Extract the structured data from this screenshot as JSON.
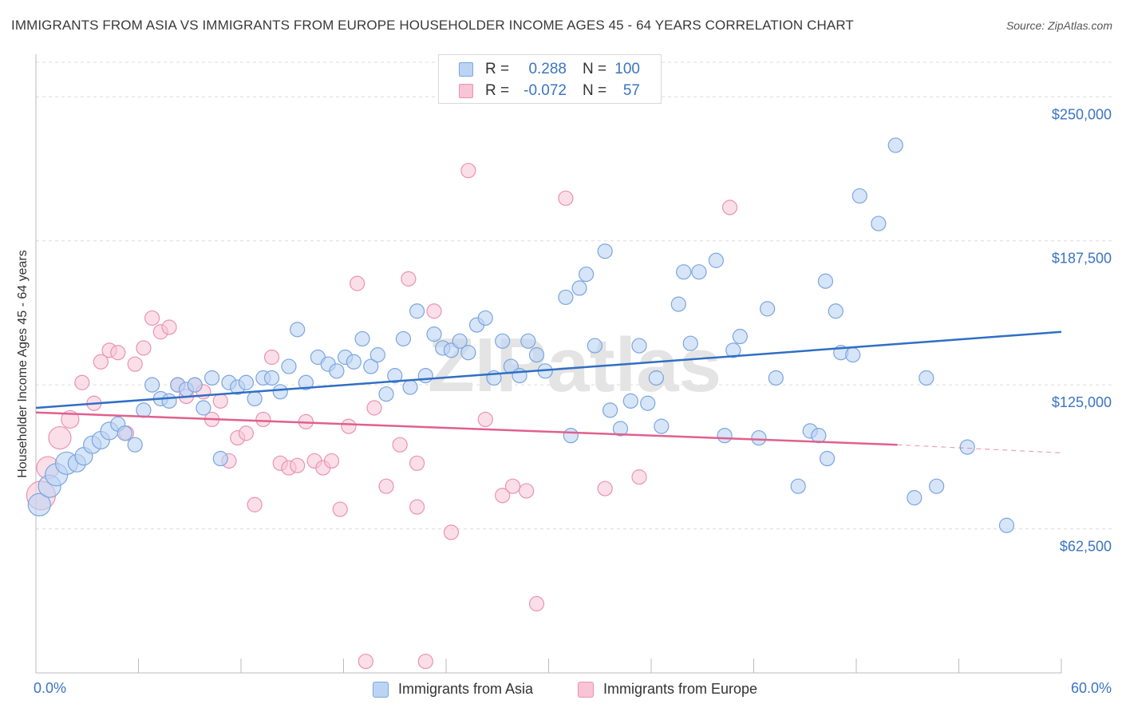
{
  "header": {
    "title": "IMMIGRANTS FROM ASIA VS IMMIGRANTS FROM EUROPE HOUSEHOLDER INCOME AGES 45 - 64 YEARS CORRELATION CHART",
    "source": "Source: ZipAtlas.com"
  },
  "watermark": "ZIPatlas",
  "legend": {
    "rows": [
      {
        "r_label": "R =",
        "r_value": "0.288",
        "n_label": "N =",
        "n_value": "100"
      },
      {
        "r_label": "R =",
        "r_value": "-0.072",
        "n_label": "N =",
        "n_value": "57"
      }
    ],
    "bottom": [
      "Immigrants from Asia",
      "Immigrants from Europe"
    ]
  },
  "colors": {
    "asia_fill": "#bcd4f4",
    "asia_stroke": "#7aa6e0",
    "asia_line": "#2f6fc4",
    "europe_fill": "#f8c4d6",
    "europe_stroke": "#eb92b2",
    "europe_line": "#e0608e",
    "grid": "#dcdcdc",
    "tick_label": "#3b74c4"
  },
  "chart_data": {
    "type": "scatter",
    "title": "IMMIGRANTS FROM ASIA VS IMMIGRANTS FROM EUROPE HOUSEHOLDER INCOME AGES 45 - 64 YEARS CORRELATION CHART",
    "xlabel": "",
    "ylabel": "Householder Income Ages 45 - 64 years",
    "xlim": [
      0,
      60
    ],
    "ylim": [
      0,
      265000
    ],
    "x_tick_labels": [
      "0.0%",
      "60.0%"
    ],
    "y_ticks": [
      62500,
      125000,
      187500,
      250000
    ],
    "y_tick_labels": [
      "$62,500",
      "$125,000",
      "$187,500",
      "$250,000"
    ],
    "grid": true,
    "legend_position": "top-center",
    "series": [
      {
        "name": "Immigrants from Asia",
        "r": 0.288,
        "n": 100,
        "trend": {
          "x": [
            0,
            60
          ],
          "y": [
            115000,
            148000
          ]
        },
        "points": [
          [
            0.2,
            73000,
            3
          ],
          [
            0.8,
            81000,
            3
          ],
          [
            1.2,
            86000,
            3
          ],
          [
            1.8,
            91000,
            3
          ],
          [
            2.4,
            91000,
            2
          ],
          [
            2.8,
            94000,
            2
          ],
          [
            3.3,
            99000,
            2
          ],
          [
            3.8,
            101000,
            2
          ],
          [
            4.3,
            105000,
            2
          ],
          [
            4.8,
            108000,
            1
          ],
          [
            5.2,
            104000,
            1
          ],
          [
            5.8,
            99000,
            1
          ],
          [
            6.3,
            114000,
            1
          ],
          [
            6.8,
            125000,
            1
          ],
          [
            7.3,
            119000,
            1
          ],
          [
            7.8,
            118000,
            1
          ],
          [
            8.3,
            125000,
            1
          ],
          [
            8.8,
            123000,
            1
          ],
          [
            9.3,
            125000,
            1
          ],
          [
            9.8,
            115000,
            1
          ],
          [
            10.3,
            128000,
            1
          ],
          [
            10.8,
            93000,
            1
          ],
          [
            11.3,
            126000,
            1
          ],
          [
            11.8,
            124000,
            1
          ],
          [
            12.3,
            126000,
            1
          ],
          [
            12.8,
            119000,
            1
          ],
          [
            13.3,
            128000,
            1
          ],
          [
            13.8,
            128000,
            1
          ],
          [
            14.3,
            122000,
            1
          ],
          [
            14.8,
            133000,
            1
          ],
          [
            15.3,
            149000,
            1
          ],
          [
            15.8,
            126000,
            1
          ],
          [
            16.5,
            137000,
            1
          ],
          [
            17.1,
            134000,
            1
          ],
          [
            17.6,
            131000,
            1
          ],
          [
            18.1,
            137000,
            1
          ],
          [
            18.6,
            135000,
            1
          ],
          [
            19.1,
            145000,
            1
          ],
          [
            19.6,
            133000,
            1
          ],
          [
            20.0,
            138000,
            1
          ],
          [
            20.5,
            121000,
            1
          ],
          [
            21.0,
            129000,
            1
          ],
          [
            21.5,
            145000,
            1
          ],
          [
            21.9,
            124000,
            1
          ],
          [
            22.3,
            157000,
            1
          ],
          [
            22.8,
            129000,
            1
          ],
          [
            23.3,
            147000,
            1
          ],
          [
            23.8,
            141000,
            1
          ],
          [
            24.3,
            140000,
            1
          ],
          [
            24.8,
            144000,
            1
          ],
          [
            25.3,
            139000,
            1
          ],
          [
            25.8,
            151000,
            1
          ],
          [
            26.3,
            154000,
            1
          ],
          [
            26.8,
            128000,
            1
          ],
          [
            27.3,
            144000,
            1
          ],
          [
            27.8,
            133000,
            1
          ],
          [
            28.3,
            129000,
            1
          ],
          [
            28.8,
            144000,
            1
          ],
          [
            29.3,
            138000,
            1
          ],
          [
            29.8,
            131000,
            1
          ],
          [
            31.0,
            163000,
            1
          ],
          [
            31.3,
            103000,
            1
          ],
          [
            31.8,
            167000,
            1
          ],
          [
            32.2,
            173000,
            1
          ],
          [
            32.7,
            142000,
            1
          ],
          [
            33.3,
            183000,
            1
          ],
          [
            33.6,
            114000,
            1
          ],
          [
            34.2,
            106000,
            1
          ],
          [
            34.8,
            118000,
            1
          ],
          [
            35.3,
            142000,
            1
          ],
          [
            35.8,
            117000,
            1
          ],
          [
            36.3,
            128000,
            1
          ],
          [
            36.6,
            107000,
            1
          ],
          [
            37.6,
            160000,
            1
          ],
          [
            37.9,
            174000,
            1
          ],
          [
            38.3,
            143000,
            1
          ],
          [
            38.8,
            174000,
            1
          ],
          [
            39.8,
            179000,
            1
          ],
          [
            40.3,
            103000,
            1
          ],
          [
            40.8,
            140000,
            1
          ],
          [
            41.2,
            146000,
            1
          ],
          [
            42.3,
            102000,
            1
          ],
          [
            42.8,
            158000,
            1
          ],
          [
            43.3,
            128000,
            1
          ],
          [
            44.6,
            81000,
            1
          ],
          [
            45.3,
            105000,
            1
          ],
          [
            45.8,
            103000,
            1
          ],
          [
            46.2,
            170000,
            1
          ],
          [
            46.8,
            157000,
            1
          ],
          [
            47.1,
            139000,
            1
          ],
          [
            46.3,
            93000,
            1
          ],
          [
            47.8,
            138000,
            1
          ],
          [
            48.2,
            207000,
            1
          ],
          [
            49.3,
            195000,
            1
          ],
          [
            50.3,
            229000,
            1
          ],
          [
            51.4,
            76000,
            1
          ],
          [
            52.1,
            128000,
            1
          ],
          [
            52.7,
            81000,
            1
          ],
          [
            54.5,
            98000,
            1
          ],
          [
            56.8,
            64000,
            1
          ]
        ]
      },
      {
        "name": "Immigrants from Europe",
        "r": -0.072,
        "n": 57,
        "trend": {
          "x": [
            0,
            50.4
          ],
          "y": [
            113000,
            99000
          ]
        },
        "trend_dashed": {
          "x": [
            50.4,
            60
          ],
          "y": [
            99000,
            95500
          ]
        },
        "points": [
          [
            0.3,
            77000,
            4
          ],
          [
            0.7,
            89000,
            3
          ],
          [
            1.4,
            102000,
            3
          ],
          [
            2.0,
            110000,
            2
          ],
          [
            2.7,
            126000,
            1
          ],
          [
            3.4,
            117000,
            1
          ],
          [
            3.8,
            135000,
            1
          ],
          [
            4.3,
            140000,
            1
          ],
          [
            4.8,
            139000,
            1
          ],
          [
            5.3,
            104000,
            1
          ],
          [
            5.8,
            134000,
            1
          ],
          [
            6.3,
            141000,
            1
          ],
          [
            6.8,
            154000,
            1
          ],
          [
            7.3,
            148000,
            1
          ],
          [
            7.8,
            150000,
            1
          ],
          [
            8.3,
            125000,
            1
          ],
          [
            8.8,
            120000,
            1
          ],
          [
            9.3,
            125000,
            1
          ],
          [
            9.8,
            122000,
            1
          ],
          [
            10.3,
            110000,
            1
          ],
          [
            10.8,
            118000,
            1
          ],
          [
            11.3,
            92000,
            1
          ],
          [
            11.8,
            102000,
            1
          ],
          [
            12.3,
            104000,
            1
          ],
          [
            12.8,
            73000,
            1
          ],
          [
            13.3,
            110000,
            1
          ],
          [
            13.8,
            137000,
            1
          ],
          [
            14.3,
            91000,
            1
          ],
          [
            14.8,
            89000,
            1
          ],
          [
            15.3,
            90000,
            1
          ],
          [
            15.8,
            109000,
            1
          ],
          [
            16.3,
            92000,
            1
          ],
          [
            16.8,
            89000,
            1
          ],
          [
            17.3,
            92000,
            1
          ],
          [
            17.8,
            71000,
            1
          ],
          [
            18.3,
            107000,
            1
          ],
          [
            18.8,
            169000,
            1
          ],
          [
            19.3,
            5000,
            1
          ],
          [
            19.8,
            115000,
            1
          ],
          [
            20.5,
            81000,
            1
          ],
          [
            21.3,
            99000,
            1
          ],
          [
            21.8,
            171000,
            1
          ],
          [
            22.3,
            72000,
            1
          ],
          [
            22.8,
            5000,
            1
          ],
          [
            23.3,
            157000,
            1
          ],
          [
            24.3,
            61000,
            1
          ],
          [
            25.3,
            218000,
            1
          ],
          [
            26.3,
            110000,
            1
          ],
          [
            27.3,
            77000,
            1
          ],
          [
            27.9,
            81000,
            1
          ],
          [
            28.7,
            79000,
            1
          ],
          [
            29.3,
            30000,
            1
          ],
          [
            31.0,
            206000,
            1
          ],
          [
            33.3,
            80000,
            1
          ],
          [
            35.3,
            85000,
            1
          ],
          [
            40.6,
            202000,
            1
          ],
          [
            22.3,
            91000,
            1
          ]
        ]
      }
    ]
  }
}
